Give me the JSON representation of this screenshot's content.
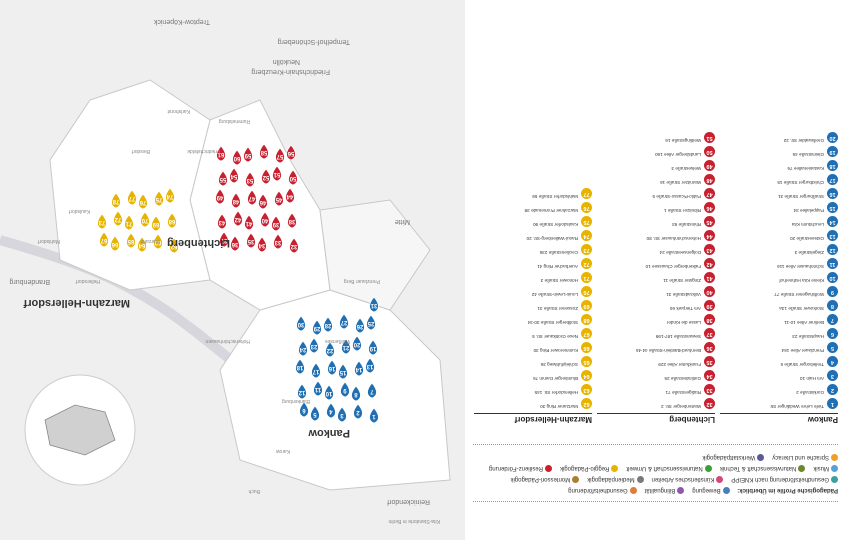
{
  "colors": {
    "pankow": "#1f6fb2",
    "lichtenberg": "#c8202f",
    "marzahn": "#e6b400",
    "profile_open": "#3aa035"
  },
  "legend": {
    "title": "Pädagogische Profile im Überblick:",
    "items": [
      {
        "label": "Bewegung",
        "color": "#4a7dc0"
      },
      {
        "label": "Bilingualität",
        "color": "#8e5aa8"
      },
      {
        "label": "Gesundheitsförderung",
        "color": "#e07b39"
      },
      {
        "label": "Gesundheitsförderung nach KNEIPP",
        "color": "#3aa0a0"
      },
      {
        "label": "Künstlerisches Arbeiten",
        "color": "#d24a7a"
      },
      {
        "label": "Medienpädagogik",
        "color": "#7a7a7a"
      },
      {
        "label": "Montessori-Pädagogik",
        "color": "#b07a3a"
      },
      {
        "label": "Musik",
        "color": "#5aa0d8"
      },
      {
        "label": "Naturwissenschaft & Technik",
        "color": "#6a8a2a"
      },
      {
        "label": "Naturwissenschaft & Umwelt",
        "color": "#3aa035"
      },
      {
        "label": "Reggio-Pädagogik",
        "color": "#e6b400"
      },
      {
        "label": "Resilienz-Förderung",
        "color": "#c8202f"
      },
      {
        "label": "Sprache und Literacy",
        "color": "#f0a020"
      },
      {
        "label": "Werkstattpädagogik",
        "color": "#5a5a9a"
      }
    ]
  },
  "districts": [
    {
      "name": "Pankow",
      "key": "pankow",
      "entries": [
        {
          "n": "1",
          "text": "Tiefe Lehre Weddinger Str.",
          "tag": ""
        },
        {
          "n": "2",
          "text": "Gorkistraße 2",
          "tag": ""
        },
        {
          "n": "3",
          "text": "Am Hain 10",
          "tag": ""
        },
        {
          "n": "4",
          "text": "Trelleborger Straße 6",
          "tag": ""
        },
        {
          "n": "5",
          "text": "Prenzlauer Allee 164",
          "tag": ""
        },
        {
          "n": "6",
          "text": "Hauptstraße 23",
          "tag": ""
        },
        {
          "n": "7",
          "text": "Berliner Allee 10-11",
          "tag": ""
        },
        {
          "n": "8",
          "text": "Storkower Straße 13a",
          "tag": ""
        },
        {
          "n": "9",
          "text": "Wolfshagener Straße 77",
          "tag": ""
        },
        {
          "n": "10",
          "text": "Kleine Kita Hühnerhof",
          "tag": ""
        },
        {
          "n": "11",
          "text": "Schönhauser Allee 116",
          "tag": ""
        },
        {
          "n": "12",
          "text": "Ziegelstraße 3",
          "tag": ""
        },
        {
          "n": "13",
          "text": "Ostseestraße 20",
          "tag": ""
        },
        {
          "n": "14",
          "text": "Leuchtturm Kita",
          "tag": ""
        },
        {
          "n": "15",
          "text": "Pappelallee 34",
          "tag": ""
        },
        {
          "n": "16",
          "text": "Straßburger Straße 31",
          "tag": ""
        },
        {
          "n": "17",
          "text": "Christburger Straße 15",
          "tag": ""
        },
        {
          "n": "18",
          "text": "Kastanienallee 76",
          "tag": ""
        },
        {
          "n": "19",
          "text": "Gleimstraße 46",
          "tag": ""
        },
        {
          "n": "20",
          "text": "Greifswalder Str. 22",
          "tag": ""
        }
      ]
    },
    {
      "name": "Lichtenberg",
      "key": "licht",
      "entries": [
        {
          "n": "32",
          "text": "Wartenberger Str. 2",
          "tag": ""
        },
        {
          "n": "33",
          "text": "Rüdigerstraße 71",
          "tag": ""
        },
        {
          "n": "34",
          "text": "Gotlindestraße 25",
          "tag": ""
        },
        {
          "n": "35",
          "text": "Frankfurter Allee 229",
          "tag": ""
        },
        {
          "n": "36",
          "text": "Bernhard-Bästlein-Straße 44-46",
          "tag": ""
        },
        {
          "n": "37",
          "text": "Sewanstraße 187-199",
          "tag": ""
        },
        {
          "n": "38",
          "text": "Lasse die Kinder",
          "tag": ""
        },
        {
          "n": "39",
          "text": "Am Tierpark 60",
          "tag": ""
        },
        {
          "n": "40",
          "text": "Volkradstraße 31",
          "tag": ""
        },
        {
          "n": "41",
          "text": "Zingster Straße 11",
          "tag": ""
        },
        {
          "n": "42",
          "text": "Falkenberger Chaussee 10",
          "tag": ""
        },
        {
          "n": "43",
          "text": "Dolgenseestraße 24",
          "tag": ""
        },
        {
          "n": "44",
          "text": "Hohenschönhauser Str. 80",
          "tag": ""
        },
        {
          "n": "45",
          "text": "Rhinstraße 93",
          "tag": ""
        },
        {
          "n": "46",
          "text": "Ribnitzer Straße 1",
          "tag": ""
        },
        {
          "n": "47",
          "text": "Pablo-Picasso-Straße 5",
          "tag": ""
        },
        {
          "n": "48",
          "text": "Warnitzer Straße 16",
          "tag": ""
        },
        {
          "n": "49",
          "text": "Welsestraße 3",
          "tag": ""
        },
        {
          "n": "50",
          "text": "Landsberger Allee 160",
          "tag": ""
        },
        {
          "n": "51",
          "text": "Weitlingstraße 16",
          "tag": ""
        }
      ]
    },
    {
      "name": "Marzahn-Hellersdorf",
      "key": "marz",
      "entries": [
        {
          "n": "62",
          "text": "Murtzaner Ring 30",
          "tag": ""
        },
        {
          "n": "63",
          "text": "Hellersdorfer Str. 145",
          "tag": ""
        },
        {
          "n": "64",
          "text": "Blumberger Damm 76",
          "tag": ""
        },
        {
          "n": "65",
          "text": "Schleipfuhlweg 36",
          "tag": ""
        },
        {
          "n": "66",
          "text": "Kummerower Ring 30",
          "tag": ""
        },
        {
          "n": "67",
          "text": "Neue Grottkauer Str. 5",
          "tag": ""
        },
        {
          "n": "68",
          "text": "Stollberger Straße 30-34",
          "tag": ""
        },
        {
          "n": "69",
          "text": "Zossener Straße 31",
          "tag": ""
        },
        {
          "n": "70",
          "text": "Louis-Lewin-Straße 42",
          "tag": ""
        },
        {
          "n": "71",
          "text": "Hönower Straße 3",
          "tag": ""
        },
        {
          "n": "72",
          "text": "Auerbacher Ring 41",
          "tag": ""
        },
        {
          "n": "73",
          "text": "Cecilienstraße 236",
          "tag": ""
        },
        {
          "n": "74",
          "text": "Raoul-Wallenberg-Str. 20",
          "tag": ""
        },
        {
          "n": "75",
          "text": "Kaulsdorfer Straße 90",
          "tag": ""
        },
        {
          "n": "76",
          "text": "Marzahner Promenade 38",
          "tag": ""
        },
        {
          "n": "77",
          "text": "Mahlsdorfer Straße 59",
          "tag": ""
        }
      ]
    }
  ],
  "map": {
    "district_labels": [
      "Pankow",
      "Lichtenberg",
      "Marzahn-Hellersdorf"
    ],
    "neighbor_labels": [
      "Brandenburg",
      "Treptow-Köpenick",
      "Neukölln",
      "Mitte",
      "Friedrichshain-Kreuzberg",
      "Tempelhof-Schöneberg",
      "Reinickendorf"
    ],
    "small_labels": [
      "Buch",
      "Karow",
      "Blankenburg",
      "Weißensee",
      "Hohenschönhausen",
      "Friedrichsfelde",
      "Karlshorst",
      "Biesdorf",
      "Kaulsdorf",
      "Mahlsdorf",
      "Hellersdorf",
      "Marzahn",
      "Rummelsburg",
      "Prenzlauer Berg"
    ],
    "pins_pankow": [
      "1",
      "2",
      "3",
      "4",
      "5",
      "6",
      "7",
      "8",
      "9",
      "10",
      "11",
      "12",
      "13",
      "14",
      "15",
      "16",
      "17",
      "18",
      "19",
      "20",
      "21",
      "22",
      "23",
      "24",
      "25",
      "26",
      "27",
      "28",
      "29",
      "30",
      "31"
    ],
    "pins_licht": [
      "32",
      "33",
      "34",
      "35",
      "36",
      "37",
      "38",
      "39",
      "40",
      "41",
      "42",
      "43",
      "44",
      "45",
      "46",
      "47",
      "48",
      "49",
      "50",
      "51",
      "52",
      "53",
      "54",
      "55",
      "56",
      "57",
      "58",
      "59",
      "60",
      "61"
    ],
    "pins_marz": [
      "62",
      "63",
      "64",
      "65",
      "66",
      "67",
      "68",
      "69",
      "70",
      "71",
      "72",
      "73",
      "74",
      "75",
      "76",
      "77",
      "78"
    ],
    "notes": [
      "Kita-Standorte in Berlin"
    ]
  }
}
